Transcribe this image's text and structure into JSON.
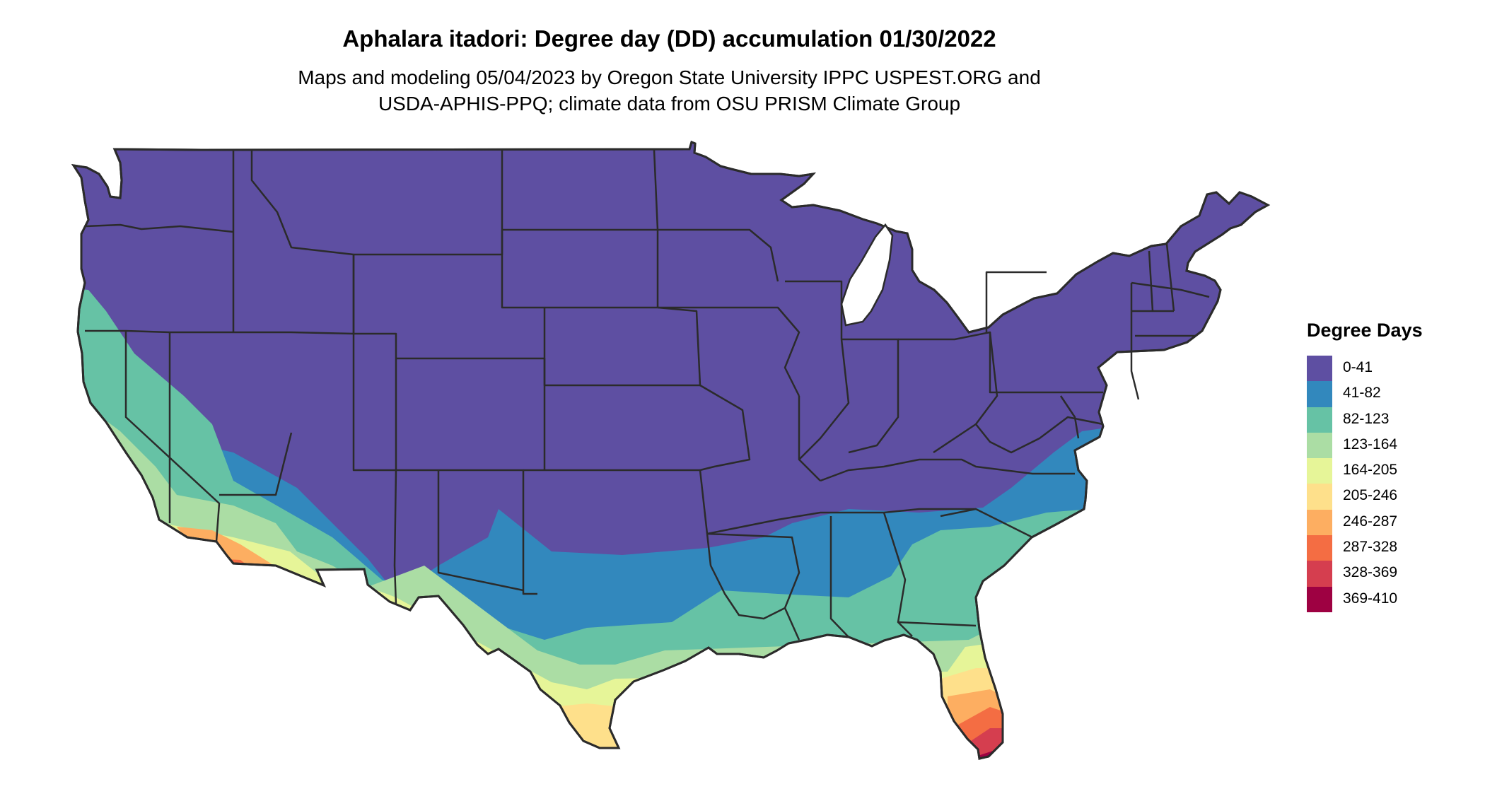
{
  "title": "Aphalara itadori: Degree day (DD) accumulation 01/30/2022",
  "subtitle_line1": "Maps and modeling 05/04/2023 by Oregon State University IPPC USPEST.ORG and",
  "subtitle_line2": "USDA-APHIS-PPQ; climate data from OSU PRISM Climate Group",
  "legend": {
    "title": "Degree Days",
    "items": [
      {
        "label": "0-41",
        "color": "#5e4fa2"
      },
      {
        "label": "41-82",
        "color": "#3288bd"
      },
      {
        "label": "82-123",
        "color": "#66c2a5"
      },
      {
        "label": "123-164",
        "color": "#abdda4"
      },
      {
        "label": "164-205",
        "color": "#e6f598"
      },
      {
        "label": "205-246",
        "color": "#fee08b"
      },
      {
        "label": "246-287",
        "color": "#fdae61"
      },
      {
        "label": "287-328",
        "color": "#f46d43"
      },
      {
        "label": "328-369",
        "color": "#d53e4f"
      },
      {
        "label": "369-410",
        "color": "#9e0142"
      }
    ]
  }
}
